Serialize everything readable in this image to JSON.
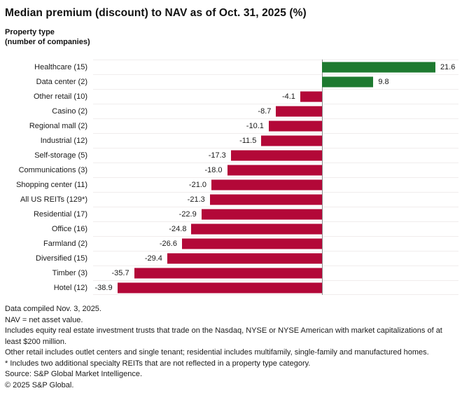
{
  "title": "Median premium (discount) to NAV as of Oct. 31, 2025 (%)",
  "axis_header": {
    "line1": "Property type",
    "line2": "(number of companies)"
  },
  "chart_data": {
    "type": "bar",
    "orientation": "horizontal",
    "title": "Median premium (discount) to NAV as of Oct. 31, 2025 (%)",
    "xlabel": "Median premium (discount) to NAV (%)",
    "ylabel": "Property type (number of companies)",
    "xlim": [
      -43.5,
      26
    ],
    "grid": true,
    "categories": [
      "Healthcare (15)",
      "Data center (2)",
      "Other retail (10)",
      "Casino (2)",
      "Regional mall (2)",
      "Industrial (12)",
      "Self-storage (5)",
      "Communications (3)",
      "Shopping center (11)",
      "All US REITs (129*)",
      "Residential (17)",
      "Office (16)",
      "Farmland (2)",
      "Diversified (15)",
      "Timber (3)",
      "Hotel (12)"
    ],
    "values": [
      21.6,
      9.8,
      -4.1,
      -8.7,
      -10.1,
      -11.5,
      -17.3,
      -18.0,
      -21.0,
      -21.3,
      -22.9,
      -24.8,
      -26.6,
      -29.4,
      -35.7,
      -38.9
    ],
    "value_labels": [
      "21.6",
      "9.8",
      "-4.1",
      "-8.7",
      "-10.1",
      "-11.5",
      "-17.3",
      "-18.0",
      "-21.0",
      "-21.3",
      "-22.9",
      "-24.8",
      "-26.6",
      "-29.4",
      "-35.7",
      "-38.9"
    ],
    "colors": {
      "positive": "#1e7a30",
      "negative": "#b30838",
      "gridline": "#f0eded",
      "zero_line": "#8c8c8c"
    }
  },
  "footnotes": [
    "Data compiled Nov. 3, 2025.",
    "NAV = net asset value.",
    "Includes equity real estate investment trusts that trade on the Nasdaq, NYSE or NYSE American with market capitalizations of at least $200 million.",
    "Other retail includes outlet centers and single tenant; residential includes multifamily, single-family and manufactured homes.",
    "* Includes two additional specialty REITs that are not reflected in a property type category.",
    "Source: S&P Global Market Intelligence.",
    "© 2025 S&P Global."
  ]
}
